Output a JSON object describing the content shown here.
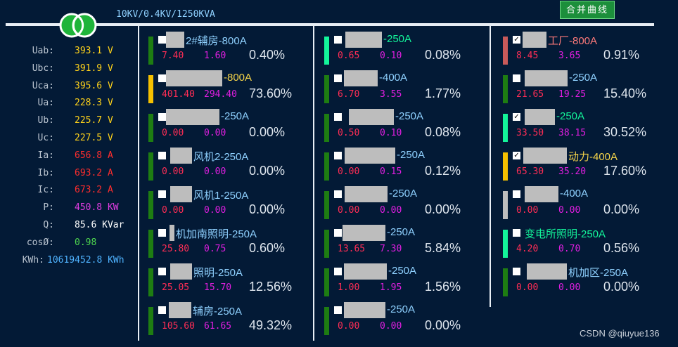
{
  "header": {
    "title": "10KV/0.4KV/1250KVA",
    "merge_button": "合并曲线"
  },
  "colors": {
    "background": "#031a36",
    "bus": "#e8eef5",
    "green": "#1e7d12",
    "mint": "#13f59a",
    "yellow": "#f5c000",
    "red": "#c95a5a",
    "gray": "#bdbdbd"
  },
  "measurements": [
    {
      "label": "Uab:",
      "value": "393.1 V",
      "color": "#ffd21a"
    },
    {
      "label": "Ubc:",
      "value": "391.9 V",
      "color": "#ffd21a"
    },
    {
      "label": "Uca:",
      "value": "395.6 V",
      "color": "#ffd21a"
    },
    {
      "label": "Ua:",
      "value": "228.3 V",
      "color": "#ffd21a"
    },
    {
      "label": "Ub:",
      "value": "225.7 V",
      "color": "#ffd21a"
    },
    {
      "label": "Uc:",
      "value": "227.5 V",
      "color": "#ffd21a"
    },
    {
      "label": "Ia:",
      "value": "656.8 A",
      "color": "#ff2d2d"
    },
    {
      "label": "Ib:",
      "value": "693.2 A",
      "color": "#ff2d2d"
    },
    {
      "label": "Ic:",
      "value": "673.2 A",
      "color": "#ff2d2d"
    },
    {
      "label": "P:",
      "value": "450.8 KW",
      "color": "#e13ce1"
    },
    {
      "label": "Q:",
      "value": "85.6 KVar",
      "color": "#ffffff"
    },
    {
      "label": "cosØ:",
      "value": "0.98",
      "color": "#4ed64e"
    },
    {
      "label": "KWh:",
      "value": "10619452.8 KWh",
      "color": "#4fb3ff"
    }
  ],
  "feeders": [
    [
      {
        "name": "2#辅房-800A",
        "v1": "7.40",
        "v2": "1.60",
        "pct": "0.40%",
        "bar": "#1e7d12",
        "name_color": "#8fd1ff",
        "checked": false,
        "redact": [
          236,
          26
        ]
      },
      {
        "name": "-800A",
        "v1": "401.40",
        "v2": "294.40",
        "pct": "73.60%",
        "bar": "#f5c000",
        "name_color": "#f5d44a",
        "checked": false,
        "redact": [
          236,
          80
        ]
      },
      {
        "name": "-250A",
        "v1": "0.00",
        "v2": "0.00",
        "pct": "0.00%",
        "bar": "#1e7d12",
        "name_color": "#8fd1ff",
        "checked": false,
        "redact": [
          236,
          76
        ]
      },
      {
        "name": "风机2-250A",
        "v1": "0.00",
        "v2": "0.00",
        "pct": "0.00%",
        "bar": "#1e7d12",
        "name_color": "#8fd1ff",
        "checked": false,
        "redact": [
          242,
          31
        ]
      },
      {
        "name": "风机1-250A",
        "v1": "0.00",
        "v2": "0.00",
        "pct": "0.00%",
        "bar": "#1e7d12",
        "name_color": "#8fd1ff",
        "checked": false,
        "redact": [
          242,
          31
        ]
      },
      {
        "name": "机加南照明-250A",
        "v1": "25.80",
        "v2": "0.75",
        "pct": "0.60%",
        "bar": "#1e7d12",
        "name_color": "#8fd1ff",
        "checked": false,
        "redact": [
          241,
          7
        ]
      },
      {
        "name": "照明-250A",
        "v1": "25.05",
        "v2": "15.70",
        "pct": "12.56%",
        "bar": "#1e7d12",
        "name_color": "#8fd1ff",
        "checked": false,
        "redact": [
          242,
          31
        ]
      },
      {
        "name": "辅房-250A",
        "v1": "105.60",
        "v2": "61.65",
        "pct": "49.32%",
        "bar": "#1e7d12",
        "name_color": "#8fd1ff",
        "checked": false,
        "redact": [
          240,
          32
        ]
      }
    ],
    [
      {
        "name": "-250A",
        "v1": "0.65",
        "v2": "0.10",
        "pct": "0.08%",
        "bar": "#13f59a",
        "name_color": "#13f59a",
        "checked": false,
        "redact": [
          491,
          52
        ]
      },
      {
        "name": "-400A",
        "v1": "6.70",
        "v2": "3.55",
        "pct": "1.77%",
        "bar": "#1e7d12",
        "name_color": "#8fd1ff",
        "checked": false,
        "redact": [
          489,
          48
        ]
      },
      {
        "name": "-250A",
        "v1": "0.50",
        "v2": "0.10",
        "pct": "0.08%",
        "bar": "#1e7d12",
        "name_color": "#8fd1ff",
        "checked": false,
        "redact": [
          496,
          64
        ]
      },
      {
        "name": "-250A",
        "v1": "0.00",
        "v2": "0.15",
        "pct": "0.12%",
        "bar": "#1e7d12",
        "name_color": "#8fd1ff",
        "checked": false,
        "redact": [
          490,
          72
        ]
      },
      {
        "name": "-250A",
        "v1": "0.00",
        "v2": "0.00",
        "pct": "0.00%",
        "bar": "#1e7d12",
        "name_color": "#8fd1ff",
        "checked": false,
        "redact": [
          490,
          61
        ]
      },
      {
        "name": "-250A",
        "v1": "13.65",
        "v2": "7.30",
        "pct": "5.84%",
        "bar": "#1e7d12",
        "name_color": "#8fd1ff",
        "checked": false,
        "redact": [
          487,
          61
        ]
      },
      {
        "name": "-250A",
        "v1": "1.00",
        "v2": "1.95",
        "pct": "1.56%",
        "bar": "#1e7d12",
        "name_color": "#8fd1ff",
        "checked": false,
        "redact": [
          489,
          61
        ]
      },
      {
        "name": "-250A",
        "v1": "0.00",
        "v2": "0.00",
        "pct": "0.00%",
        "bar": "#1e7d12",
        "name_color": "#8fd1ff",
        "checked": false,
        "redact": [
          489,
          59
        ]
      }
    ],
    [
      {
        "name": "工厂-800A",
        "v1": "8.45",
        "v2": "3.65",
        "pct": "0.91%",
        "bar": "#c95a5a",
        "name_color": "#ff7a7a",
        "checked": true,
        "redact": [
          743,
          34
        ]
      },
      {
        "name": "-250A",
        "v1": "21.65",
        "v2": "19.25",
        "pct": "15.40%",
        "bar": "#1e7d12",
        "name_color": "#8fd1ff",
        "checked": false,
        "redact": [
          746,
          61
        ]
      },
      {
        "name": "-250A",
        "v1": "33.50",
        "v2": "38.15",
        "pct": "30.52%",
        "bar": "#13f59a",
        "name_color": "#13f59a",
        "checked": true,
        "redact": [
          746,
          43
        ]
      },
      {
        "name": "动力-400A",
        "v1": "65.30",
        "v2": "35.20",
        "pct": "17.60%",
        "bar": "#f5c000",
        "name_color": "#f5d44a",
        "checked": true,
        "redact": [
          744,
          62
        ]
      },
      {
        "name": "-400A",
        "v1": "0.00",
        "v2": "0.00",
        "pct": "0.00%",
        "bar": "#bdbdbd",
        "name_color": "#8fd1ff",
        "checked": false,
        "redact": [
          746,
          48
        ]
      },
      {
        "name": "变电所照明-250A",
        "v1": "4.20",
        "v2": "0.70",
        "pct": "0.56%",
        "bar": "#13f59a",
        "name_color": "#13f59a",
        "checked": false,
        "redact": null
      },
      {
        "name": "机加区-250A",
        "v1": "0.00",
        "v2": "0.00",
        "pct": "0.00%",
        "bar": "#1e7d12",
        "name_color": "#8fd1ff",
        "checked": false,
        "redact": [
          749,
          57
        ]
      }
    ]
  ],
  "watermark": "CSDN @qiuyue136"
}
